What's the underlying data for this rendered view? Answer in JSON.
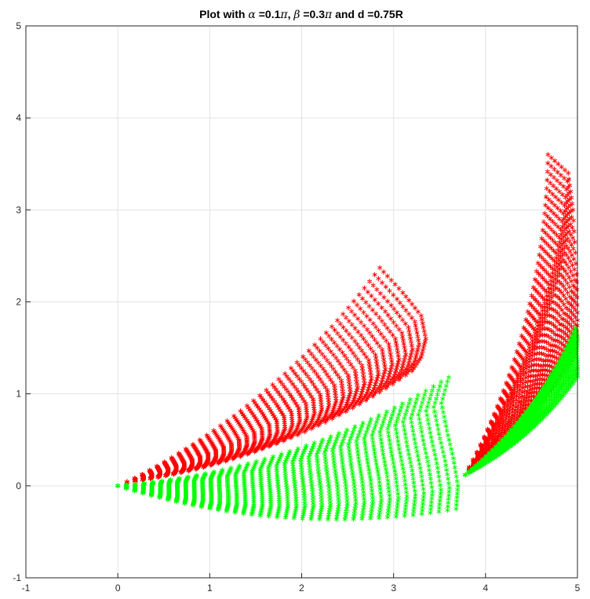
{
  "chart_data": {
    "type": "scatter",
    "title": {
      "prefix": "Plot with ",
      "alpha_symbol": "α",
      "alpha_value": " =0.1",
      "pi1": "π",
      "sep": ", ",
      "beta_symbol": "β",
      "beta_value": " =0.3",
      "pi2": "π",
      "suffix": " and d =0.75R"
    },
    "xlim": [
      -1,
      5
    ],
    "ylim": [
      -1,
      5
    ],
    "xticks": [
      -1,
      0,
      1,
      2,
      3,
      4,
      5
    ],
    "yticks": [
      -1,
      0,
      1,
      2,
      3,
      4,
      5
    ],
    "xtick_labels": [
      "-1",
      "0",
      "1",
      "2",
      "3",
      "4",
      "5"
    ],
    "ytick_labels": [
      "-1",
      "0",
      "1",
      "2",
      "3",
      "4",
      "5"
    ],
    "grid": true,
    "marker": "*",
    "series": [
      {
        "color": "#ff0000",
        "segments": [
          {
            "start": [
              0.1,
              0.04
            ],
            "arcs": [
              [
                3.2,
                1.25
              ],
              [
                3.3,
                1.4
              ],
              [
                3.35,
                1.6
              ],
              [
                3.3,
                1.85
              ],
              [
                3.1,
                2.1
              ],
              [
                2.85,
                2.37
              ]
            ]
          },
          {
            "start": [
              3.78,
              0.12
            ],
            "arcs": [
              [
                4.98,
                1.45
              ],
              [
                5.0,
                1.8
              ],
              [
                4.99,
                2.3
              ],
              [
                4.95,
                3.0
              ],
              [
                4.9,
                3.4
              ],
              [
                4.68,
                3.6
              ]
            ]
          }
        ]
      },
      {
        "color": "#00ff00",
        "segments": [
          {
            "start": [
              0.0,
              0.0
            ],
            "arcs": [
              [
                3.68,
                -0.25
              ],
              [
                3.7,
                0.0
              ],
              [
                3.65,
                0.3
              ],
              [
                3.58,
                0.6
              ],
              [
                3.52,
                0.9
              ],
              [
                3.6,
                1.18
              ]
            ]
          },
          {
            "start": [
              3.78,
              0.12
            ],
            "arcs": [
              [
                5.0,
                1.18
              ],
              [
                5.0,
                1.3
              ],
              [
                4.99,
                1.45
              ],
              [
                5.0,
                1.6
              ],
              [
                4.98,
                1.72
              ]
            ]
          }
        ]
      }
    ]
  }
}
